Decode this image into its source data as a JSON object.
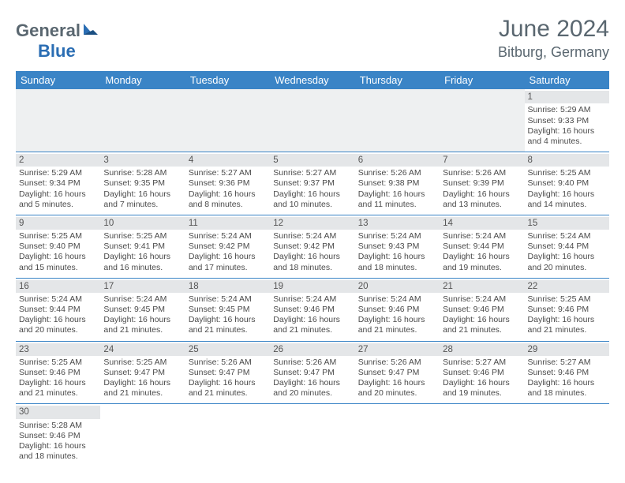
{
  "brand": {
    "part1": "General",
    "part2": "Blue"
  },
  "title": "June 2024",
  "location": "Bitburg, Germany",
  "colors": {
    "header_bg": "#3a84c6",
    "header_text": "#ffffff",
    "daynum_bg": "#e4e6e8",
    "border": "#3a84c6",
    "logo_gray": "#5a6770",
    "logo_blue": "#2a6db3",
    "page_bg": "#ffffff"
  },
  "fonts": {
    "base": "Arial",
    "title_size": 30,
    "location_size": 18,
    "th_size": 13,
    "cell_size": 10.5
  },
  "weekdays": [
    "Sunday",
    "Monday",
    "Tuesday",
    "Wednesday",
    "Thursday",
    "Friday",
    "Saturday"
  ],
  "weeks": [
    [
      null,
      null,
      null,
      null,
      null,
      null,
      {
        "d": "1",
        "sr": "Sunrise: 5:29 AM",
        "ss": "Sunset: 9:33 PM",
        "dl": "Daylight: 16 hours and 4 minutes."
      }
    ],
    [
      {
        "d": "2",
        "sr": "Sunrise: 5:29 AM",
        "ss": "Sunset: 9:34 PM",
        "dl": "Daylight: 16 hours and 5 minutes."
      },
      {
        "d": "3",
        "sr": "Sunrise: 5:28 AM",
        "ss": "Sunset: 9:35 PM",
        "dl": "Daylight: 16 hours and 7 minutes."
      },
      {
        "d": "4",
        "sr": "Sunrise: 5:27 AM",
        "ss": "Sunset: 9:36 PM",
        "dl": "Daylight: 16 hours and 8 minutes."
      },
      {
        "d": "5",
        "sr": "Sunrise: 5:27 AM",
        "ss": "Sunset: 9:37 PM",
        "dl": "Daylight: 16 hours and 10 minutes."
      },
      {
        "d": "6",
        "sr": "Sunrise: 5:26 AM",
        "ss": "Sunset: 9:38 PM",
        "dl": "Daylight: 16 hours and 11 minutes."
      },
      {
        "d": "7",
        "sr": "Sunrise: 5:26 AM",
        "ss": "Sunset: 9:39 PM",
        "dl": "Daylight: 16 hours and 13 minutes."
      },
      {
        "d": "8",
        "sr": "Sunrise: 5:25 AM",
        "ss": "Sunset: 9:40 PM",
        "dl": "Daylight: 16 hours and 14 minutes."
      }
    ],
    [
      {
        "d": "9",
        "sr": "Sunrise: 5:25 AM",
        "ss": "Sunset: 9:40 PM",
        "dl": "Daylight: 16 hours and 15 minutes."
      },
      {
        "d": "10",
        "sr": "Sunrise: 5:25 AM",
        "ss": "Sunset: 9:41 PM",
        "dl": "Daylight: 16 hours and 16 minutes."
      },
      {
        "d": "11",
        "sr": "Sunrise: 5:24 AM",
        "ss": "Sunset: 9:42 PM",
        "dl": "Daylight: 16 hours and 17 minutes."
      },
      {
        "d": "12",
        "sr": "Sunrise: 5:24 AM",
        "ss": "Sunset: 9:42 PM",
        "dl": "Daylight: 16 hours and 18 minutes."
      },
      {
        "d": "13",
        "sr": "Sunrise: 5:24 AM",
        "ss": "Sunset: 9:43 PM",
        "dl": "Daylight: 16 hours and 18 minutes."
      },
      {
        "d": "14",
        "sr": "Sunrise: 5:24 AM",
        "ss": "Sunset: 9:44 PM",
        "dl": "Daylight: 16 hours and 19 minutes."
      },
      {
        "d": "15",
        "sr": "Sunrise: 5:24 AM",
        "ss": "Sunset: 9:44 PM",
        "dl": "Daylight: 16 hours and 20 minutes."
      }
    ],
    [
      {
        "d": "16",
        "sr": "Sunrise: 5:24 AM",
        "ss": "Sunset: 9:44 PM",
        "dl": "Daylight: 16 hours and 20 minutes."
      },
      {
        "d": "17",
        "sr": "Sunrise: 5:24 AM",
        "ss": "Sunset: 9:45 PM",
        "dl": "Daylight: 16 hours and 21 minutes."
      },
      {
        "d": "18",
        "sr": "Sunrise: 5:24 AM",
        "ss": "Sunset: 9:45 PM",
        "dl": "Daylight: 16 hours and 21 minutes."
      },
      {
        "d": "19",
        "sr": "Sunrise: 5:24 AM",
        "ss": "Sunset: 9:46 PM",
        "dl": "Daylight: 16 hours and 21 minutes."
      },
      {
        "d": "20",
        "sr": "Sunrise: 5:24 AM",
        "ss": "Sunset: 9:46 PM",
        "dl": "Daylight: 16 hours and 21 minutes."
      },
      {
        "d": "21",
        "sr": "Sunrise: 5:24 AM",
        "ss": "Sunset: 9:46 PM",
        "dl": "Daylight: 16 hours and 21 minutes."
      },
      {
        "d": "22",
        "sr": "Sunrise: 5:25 AM",
        "ss": "Sunset: 9:46 PM",
        "dl": "Daylight: 16 hours and 21 minutes."
      }
    ],
    [
      {
        "d": "23",
        "sr": "Sunrise: 5:25 AM",
        "ss": "Sunset: 9:46 PM",
        "dl": "Daylight: 16 hours and 21 minutes."
      },
      {
        "d": "24",
        "sr": "Sunrise: 5:25 AM",
        "ss": "Sunset: 9:47 PM",
        "dl": "Daylight: 16 hours and 21 minutes."
      },
      {
        "d": "25",
        "sr": "Sunrise: 5:26 AM",
        "ss": "Sunset: 9:47 PM",
        "dl": "Daylight: 16 hours and 21 minutes."
      },
      {
        "d": "26",
        "sr": "Sunrise: 5:26 AM",
        "ss": "Sunset: 9:47 PM",
        "dl": "Daylight: 16 hours and 20 minutes."
      },
      {
        "d": "27",
        "sr": "Sunrise: 5:26 AM",
        "ss": "Sunset: 9:47 PM",
        "dl": "Daylight: 16 hours and 20 minutes."
      },
      {
        "d": "28",
        "sr": "Sunrise: 5:27 AM",
        "ss": "Sunset: 9:46 PM",
        "dl": "Daylight: 16 hours and 19 minutes."
      },
      {
        "d": "29",
        "sr": "Sunrise: 5:27 AM",
        "ss": "Sunset: 9:46 PM",
        "dl": "Daylight: 16 hours and 18 minutes."
      }
    ],
    [
      {
        "d": "30",
        "sr": "Sunrise: 5:28 AM",
        "ss": "Sunset: 9:46 PM",
        "dl": "Daylight: 16 hours and 18 minutes."
      },
      null,
      null,
      null,
      null,
      null,
      null
    ]
  ]
}
